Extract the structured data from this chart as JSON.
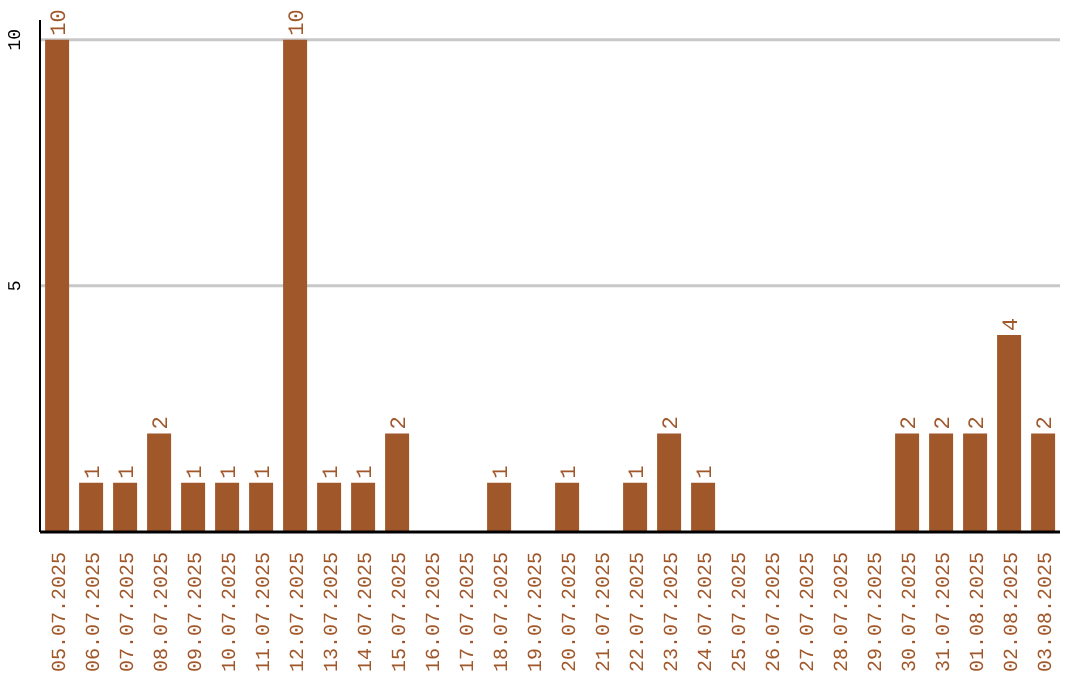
{
  "chart_data": {
    "type": "bar",
    "categories": [
      "05.07.2025",
      "06.07.2025",
      "07.07.2025",
      "08.07.2025",
      "09.07.2025",
      "10.07.2025",
      "11.07.2025",
      "12.07.2025",
      "13.07.2025",
      "14.07.2025",
      "15.07.2025",
      "16.07.2025",
      "17.07.2025",
      "18.07.2025",
      "19.07.2025",
      "20.07.2025",
      "21.07.2025",
      "22.07.2025",
      "23.07.2025",
      "24.07.2025",
      "25.07.2025",
      "26.07.2025",
      "27.07.2025",
      "28.07.2025",
      "29.07.2025",
      "30.07.2025",
      "31.07.2025",
      "01.08.2025",
      "02.08.2025",
      "03.08.2025"
    ],
    "values": [
      10,
      1,
      1,
      2,
      1,
      1,
      1,
      10,
      1,
      1,
      2,
      null,
      null,
      1,
      null,
      1,
      null,
      1,
      2,
      1,
      null,
      null,
      null,
      null,
      null,
      2,
      2,
      2,
      4,
      2
    ],
    "color": "#a0572a",
    "ylim": [
      0,
      10.4
    ],
    "yticks": [
      5,
      10
    ],
    "grid": "y",
    "data_labels": true
  }
}
